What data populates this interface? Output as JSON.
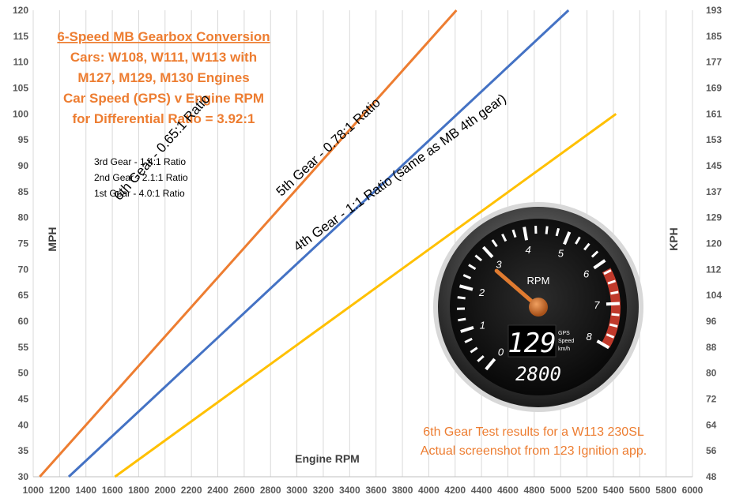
{
  "chart_data": {
    "type": "line",
    "title": [
      "6-Speed MB Gearbox Conversion",
      "Cars: W108, W111, W113 with",
      "M127, M129, M130 Engines",
      "Car Speed (GPS) v Engine RPM",
      "for Differential Ratio = 3.92:1"
    ],
    "xlabel": "Engine RPM",
    "ylabel": "MPH",
    "y2label": "KPH",
    "xlim": [
      1000,
      6000
    ],
    "ylim": [
      30,
      120
    ],
    "y2lim": [
      48,
      193
    ],
    "x_ticks": [
      1000,
      1200,
      1400,
      1600,
      1800,
      2000,
      2200,
      2400,
      2600,
      2800,
      3000,
      3200,
      3400,
      3600,
      3800,
      4000,
      4200,
      4400,
      4600,
      4800,
      5000,
      5200,
      5400,
      5600,
      5800,
      6000
    ],
    "y_ticks": [
      30,
      35,
      40,
      45,
      50,
      55,
      60,
      65,
      70,
      75,
      80,
      85,
      90,
      95,
      100,
      105,
      110,
      115,
      120
    ],
    "y2_ticks": [
      48,
      56,
      64,
      72,
      80,
      88,
      96,
      104,
      112,
      120,
      129,
      137,
      145,
      153,
      161,
      169,
      177,
      185,
      193
    ],
    "grid": "vertical",
    "series": [
      {
        "name": "6th Gear - 0.65:1 Ratio",
        "color": "#ED7D31",
        "points": [
          [
            1050,
            30
          ],
          [
            4210,
            120
          ]
        ]
      },
      {
        "name": "5th Gear - 0.78:1 Ratio",
        "color": "#4472C4",
        "points": [
          [
            1270,
            30
          ],
          [
            5060,
            120
          ]
        ]
      },
      {
        "name": "4th Gear - 1:1 Ratio (same as MB 4th gear)",
        "color": "#FFC000",
        "points": [
          [
            1620,
            30
          ],
          [
            5420,
            100
          ]
        ]
      }
    ],
    "annotations": {
      "lower_gears": [
        "3rd Gear - 1.4:1 Ratio",
        "2nd Gear - 2.1:1 Ratio",
        "1st Gear -  4.0:1 Ratio"
      ],
      "caption": [
        "6th Gear Test results for a W113 230SL",
        "Actual screenshot from 123 Ignition app."
      ]
    }
  },
  "gauge": {
    "dial_numbers": [
      "0",
      "1",
      "2",
      "3",
      "4",
      "5",
      "6",
      "7",
      "8"
    ],
    "unit": "RPM",
    "speed": "129",
    "speed_unit": [
      "GPS",
      "Speed",
      "km/h"
    ],
    "rpm": "2800",
    "needle_rpm": 2.8,
    "colors": {
      "redline": "#C0392B",
      "needle": "#E07B30",
      "face": "#111111"
    }
  }
}
